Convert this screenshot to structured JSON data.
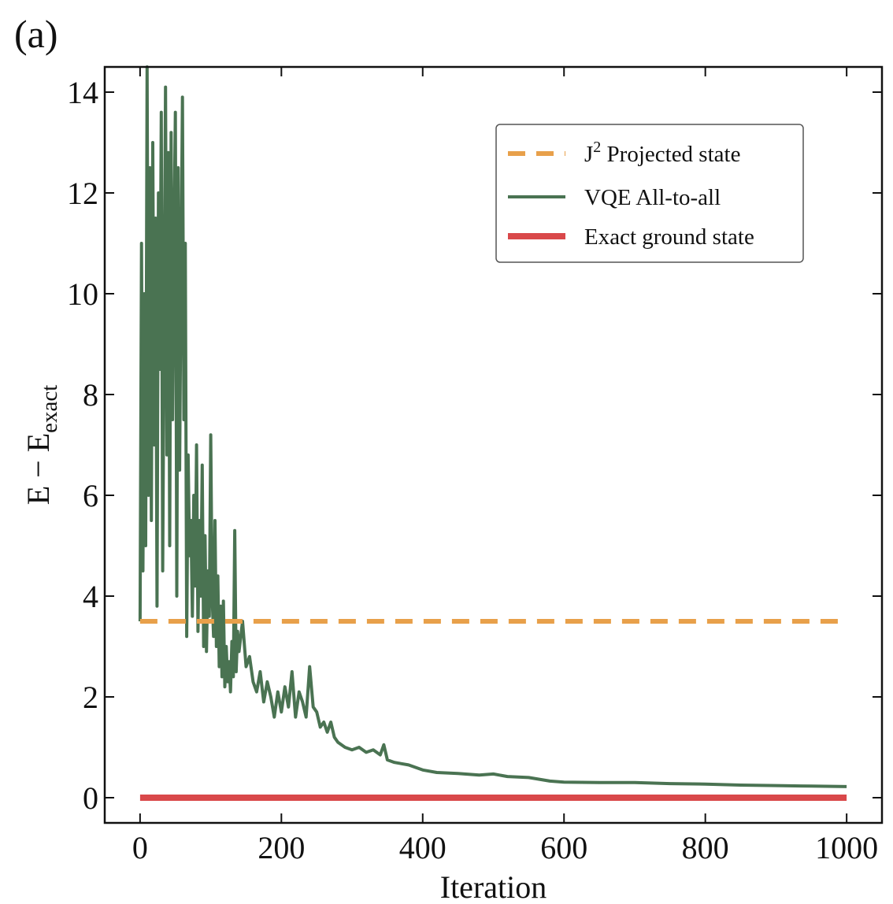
{
  "panel_label": "(a)",
  "chart_data": {
    "type": "line",
    "xlabel": "Iteration",
    "ylabel_main": "E − E",
    "ylabel_sub": "exact",
    "xlim": [
      -50,
      1050
    ],
    "ylim": [
      -0.5,
      14.5
    ],
    "xticks": [
      0,
      200,
      400,
      600,
      800,
      1000
    ],
    "yticks": [
      0,
      2,
      4,
      6,
      8,
      10,
      12,
      14
    ],
    "grid": false,
    "legend_position": "top-right",
    "series": [
      {
        "name_main": "J",
        "name_sup": "2",
        "name_rest": " Projected state",
        "style": "dashed",
        "color": "#e8a04a",
        "x": [
          0,
          1000
        ],
        "y": [
          3.5,
          3.5
        ]
      },
      {
        "name": "VQE All-to-all",
        "style": "solid",
        "color": "#4a7352",
        "x": [
          0,
          2,
          4,
          6,
          8,
          10,
          12,
          14,
          16,
          18,
          20,
          22,
          24,
          26,
          28,
          30,
          32,
          34,
          36,
          38,
          40,
          42,
          44,
          46,
          48,
          50,
          52,
          54,
          56,
          58,
          60,
          62,
          64,
          66,
          68,
          70,
          72,
          74,
          76,
          78,
          80,
          82,
          84,
          86,
          88,
          90,
          92,
          94,
          96,
          98,
          100,
          102,
          104,
          106,
          108,
          110,
          112,
          114,
          116,
          118,
          120,
          122,
          124,
          126,
          128,
          130,
          132,
          134,
          136,
          138,
          140,
          145,
          150,
          155,
          160,
          165,
          170,
          175,
          180,
          185,
          190,
          195,
          200,
          205,
          210,
          215,
          220,
          225,
          230,
          235,
          240,
          245,
          250,
          255,
          260,
          265,
          270,
          275,
          280,
          290,
          300,
          310,
          320,
          330,
          340,
          345,
          350,
          360,
          380,
          400,
          420,
          450,
          480,
          500,
          520,
          550,
          580,
          600,
          650,
          700,
          750,
          800,
          850,
          900,
          950,
          1000
        ],
        "y": [
          3.5,
          11.0,
          4.5,
          10.0,
          5.0,
          14.5,
          6.0,
          12.5,
          5.5,
          13.0,
          7.0,
          11.5,
          3.8,
          12.0,
          8.5,
          13.6,
          4.5,
          9.5,
          14.1,
          6.8,
          12.8,
          5.0,
          13.2,
          7.5,
          11.0,
          13.6,
          4.0,
          12.5,
          6.5,
          10.5,
          13.9,
          7.5,
          11.0,
          3.2,
          6.8,
          4.8,
          5.5,
          3.6,
          6.0,
          4.2,
          7.0,
          3.3,
          5.5,
          4.0,
          6.6,
          3.0,
          5.2,
          2.9,
          4.5,
          3.6,
          7.2,
          4.0,
          3.2,
          5.5,
          3.0,
          4.4,
          2.6,
          3.8,
          2.4,
          3.9,
          2.2,
          3.0,
          2.3,
          2.7,
          2.1,
          3.1,
          2.4,
          5.3,
          2.5,
          3.3,
          2.9,
          3.5,
          2.6,
          2.8,
          2.3,
          2.1,
          2.5,
          1.9,
          2.3,
          2.0,
          1.6,
          2.1,
          1.7,
          2.2,
          1.8,
          2.5,
          1.6,
          2.1,
          1.9,
          1.6,
          2.6,
          1.8,
          1.7,
          1.4,
          1.5,
          1.3,
          1.5,
          1.2,
          1.1,
          1.0,
          0.95,
          1.0,
          0.9,
          0.95,
          0.85,
          1.05,
          0.75,
          0.7,
          0.65,
          0.55,
          0.5,
          0.48,
          0.45,
          0.47,
          0.42,
          0.4,
          0.33,
          0.31,
          0.3,
          0.3,
          0.28,
          0.27,
          0.25,
          0.24,
          0.23,
          0.22
        ]
      },
      {
        "name": "Exact ground state",
        "style": "solid-thick",
        "color": "#d9484a",
        "x": [
          0,
          1000
        ],
        "y": [
          0,
          0
        ]
      }
    ]
  }
}
